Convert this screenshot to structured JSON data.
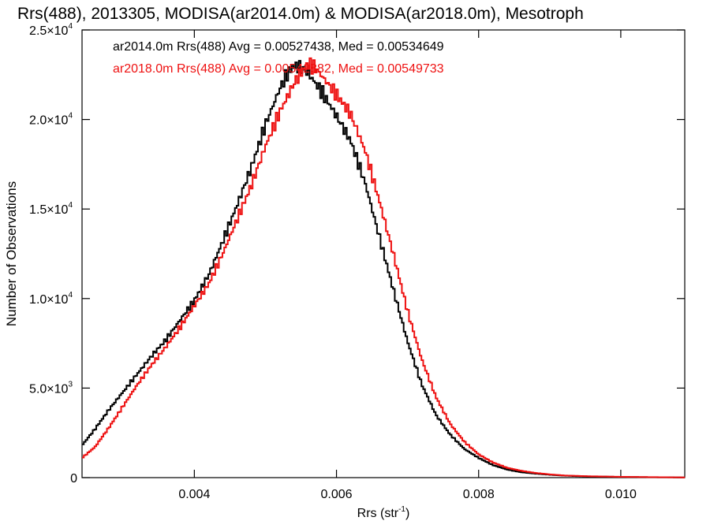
{
  "chart_data": {
    "type": "line",
    "title": "Rrs(488), 2013305, MODISA(ar2014.0m) & MODISA(ar2018.0m), Mesotroph",
    "xlabel_base": "Rrs (str",
    "xlabel_sup": "-1",
    "xlabel_tail": ")",
    "ylabel": "Number of Observations",
    "xlim": [
      0.00242,
      0.0109
    ],
    "ylim": [
      0,
      25000
    ],
    "x_ticks": [
      {
        "value": 0.004,
        "label": "0.004"
      },
      {
        "value": 0.006,
        "label": "0.006"
      },
      {
        "value": 0.008,
        "label": "0.008"
      },
      {
        "value": 0.01,
        "label": "0.010"
      }
    ],
    "y_ticks": [
      {
        "value": 0,
        "mant": "0",
        "exp": ""
      },
      {
        "value": 5000,
        "mant": "5.0×10",
        "exp": "3"
      },
      {
        "value": 10000,
        "mant": "1.0×10",
        "exp": "4"
      },
      {
        "value": 15000,
        "mant": "1.5×10",
        "exp": "4"
      },
      {
        "value": 20000,
        "mant": "2.0×10",
        "exp": "4"
      },
      {
        "value": 25000,
        "mant": "2.5×10",
        "exp": "4"
      }
    ],
    "legend_position": "top-left",
    "grid": false,
    "series": [
      {
        "name": "ar2014.0m",
        "legend": "ar2014.0m Rrs(488) Avg = 0.00527438, Med = 0.00534649",
        "color": "#000000",
        "x": [
          0.00242,
          0.0026,
          0.0028,
          0.003,
          0.0032,
          0.0034,
          0.0036,
          0.0038,
          0.004,
          0.0042,
          0.0044,
          0.0046,
          0.0048,
          0.005,
          0.0052,
          0.0053,
          0.0054,
          0.0055,
          0.0056,
          0.0058,
          0.006,
          0.0062,
          0.0064,
          0.0066,
          0.0068,
          0.007,
          0.0072,
          0.0074,
          0.0076,
          0.0078,
          0.008,
          0.0082,
          0.0084,
          0.0086,
          0.0088,
          0.009,
          0.0092,
          0.0095,
          0.01,
          0.0105,
          0.0109
        ],
        "y": [
          1800,
          2700,
          3800,
          4800,
          5800,
          6800,
          7700,
          8800,
          9900,
          11300,
          13200,
          15200,
          17300,
          19700,
          21700,
          22500,
          23000,
          22900,
          22600,
          21500,
          20200,
          18800,
          16500,
          13500,
          10500,
          7600,
          5200,
          3500,
          2400,
          1600,
          1100,
          700,
          450,
          300,
          220,
          160,
          110,
          70,
          40,
          20,
          10
        ]
      },
      {
        "name": "ar2018.0m",
        "legend": "ar2018.0m Rrs(488) Avg = 0.00542882, Med = 0.00549733",
        "color": "#ee1111",
        "x": [
          0.00242,
          0.0026,
          0.0028,
          0.003,
          0.0032,
          0.0034,
          0.0036,
          0.0038,
          0.004,
          0.0042,
          0.0044,
          0.0046,
          0.0048,
          0.005,
          0.0052,
          0.0054,
          0.0055,
          0.0056,
          0.0057,
          0.0058,
          0.006,
          0.0062,
          0.0064,
          0.0066,
          0.0068,
          0.007,
          0.0072,
          0.0074,
          0.0076,
          0.0078,
          0.008,
          0.0082,
          0.0084,
          0.0086,
          0.0088,
          0.009,
          0.0092,
          0.0095,
          0.01,
          0.0105,
          0.0109
        ],
        "y": [
          1100,
          1700,
          2800,
          4000,
          5200,
          6300,
          7300,
          8400,
          9600,
          10800,
          12500,
          14400,
          16300,
          18500,
          20400,
          22000,
          22600,
          23100,
          22900,
          22400,
          21400,
          20300,
          18300,
          15500,
          12500,
          9300,
          6600,
          4500,
          3000,
          2000,
          1300,
          850,
          550,
          380,
          260,
          180,
          120,
          80,
          45,
          25,
          12
        ]
      }
    ]
  }
}
